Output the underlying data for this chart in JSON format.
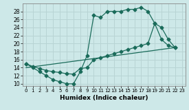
{
  "xlabel": "Humidex (Indice chaleur)",
  "bg_color": "#cde8e8",
  "line_color": "#1a6b5a",
  "grid_color": "#b8d4d4",
  "xlim": [
    -0.5,
    23.5
  ],
  "ylim": [
    9.5,
    30
  ],
  "xticks": [
    0,
    1,
    2,
    3,
    4,
    5,
    6,
    7,
    8,
    9,
    10,
    11,
    12,
    13,
    14,
    15,
    16,
    17,
    18,
    19,
    20,
    21,
    22,
    23
  ],
  "yticks": [
    10,
    12,
    14,
    16,
    18,
    20,
    22,
    24,
    26,
    28
  ],
  "line1_x": [
    0,
    1,
    2,
    3,
    4,
    5,
    6,
    7,
    8,
    9,
    10,
    11,
    12,
    13,
    14,
    15,
    16,
    17,
    18,
    19,
    20,
    21,
    22
  ],
  "line1_y": [
    15,
    14,
    13,
    12,
    11,
    10.5,
    10,
    10,
    13,
    17,
    27,
    26.5,
    28,
    28,
    28,
    28.5,
    28.5,
    29,
    28,
    25,
    24,
    21,
    19
  ],
  "line2_x": [
    0,
    1,
    2,
    3,
    4,
    5,
    6,
    7,
    8,
    9,
    10,
    11,
    12,
    13,
    14,
    15,
    16,
    17,
    18,
    19,
    20,
    21,
    22
  ],
  "line2_y": [
    15,
    14.3,
    13.8,
    13.3,
    13.0,
    12.8,
    12.5,
    12.4,
    13.8,
    14,
    16,
    16.5,
    17,
    17.5,
    18,
    18.5,
    19,
    19.5,
    20,
    25,
    21,
    19.5,
    19
  ],
  "line3_x": [
    0,
    22
  ],
  "line3_y": [
    14,
    19
  ]
}
